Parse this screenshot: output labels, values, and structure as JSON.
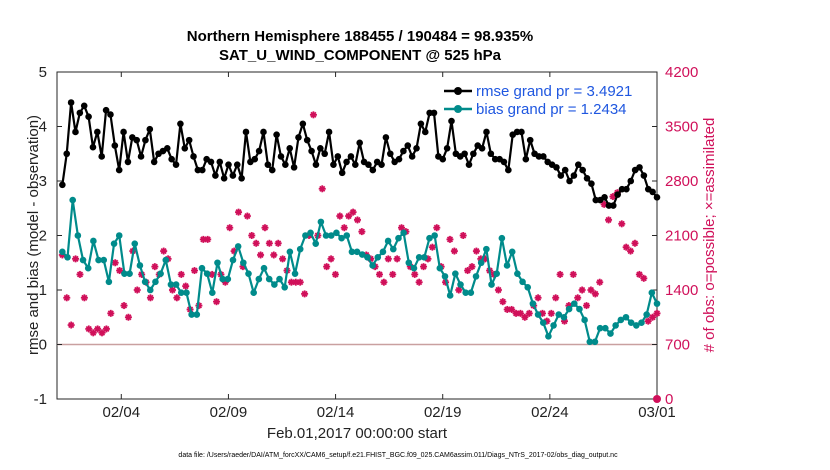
{
  "chart_data": {
    "type": "line",
    "title": "Northern Hemisphere 188455 / 190484 = 98.935%",
    "subtitle": "SAT_U_WIND_COMPONENT @ 525 hPa",
    "xlabel": "Feb.01,2017 00:00:00 start",
    "ylabel": "rmse and bias (model - observation)",
    "ylabel_right": "# of obs: o=possible; ×=assimilated",
    "ylim": [
      -1,
      5
    ],
    "ylim_right": [
      0,
      4200
    ],
    "xlim": [
      0,
      28
    ],
    "yticks": [
      "-1",
      "0",
      "1",
      "2",
      "3",
      "4",
      "5"
    ],
    "yticks_right": [
      "0",
      "700",
      "1400",
      "2100",
      "2800",
      "3500",
      "4200"
    ],
    "xticks": [
      {
        "x": 3,
        "label": "02/04"
      },
      {
        "x": 8,
        "label": "02/09"
      },
      {
        "x": 13,
        "label": "02/14"
      },
      {
        "x": 18,
        "label": "02/19"
      },
      {
        "x": 23,
        "label": "02/24"
      },
      {
        "x": 28,
        "label": "03/01"
      }
    ],
    "legend": {
      "placement": "top-right"
    },
    "x_step": 0.25,
    "series": [
      {
        "name": "rmse",
        "legend_label": "rmse grand pr = 3.4921",
        "color": "#000000",
        "axis": "left",
        "values": [
          2.93,
          3.5,
          4.44,
          3.9,
          4.25,
          4.38,
          4.18,
          3.62,
          3.9,
          3.45,
          4.3,
          4.22,
          3.65,
          3.2,
          3.9,
          3.35,
          3.8,
          3.75,
          3.45,
          3.75,
          3.95,
          3.35,
          3.5,
          3.55,
          3.6,
          3.4,
          3.3,
          4.05,
          3.6,
          3.75,
          3.45,
          3.2,
          3.2,
          3.4,
          3.35,
          3.1,
          3.35,
          3.05,
          3.3,
          3.1,
          3.3,
          3.05,
          3.9,
          3.35,
          3.4,
          3.55,
          3.9,
          3.3,
          3.2,
          3.85,
          3.45,
          3.3,
          3.6,
          3.25,
          3.8,
          4.05,
          3.75,
          3.55,
          3.3,
          3.6,
          3.5,
          3.9,
          3.3,
          3.45,
          3.15,
          3.35,
          3.45,
          3.3,
          3.7,
          3.35,
          3.3,
          3.2,
          3.35,
          3.3,
          3.8,
          3.5,
          3.35,
          3.4,
          3.55,
          3.65,
          3.45,
          3.6,
          4.05,
          3.9,
          4.25,
          4.25,
          3.45,
          3.4,
          3.6,
          4.1,
          3.5,
          3.45,
          3.5,
          3.3,
          3.5,
          3.65,
          3.6,
          3.9,
          3.5,
          3.4,
          3.4,
          3.35,
          3.2,
          3.85,
          3.9,
          3.9,
          3.4,
          3.75,
          3.5,
          3.45,
          3.45,
          3.35,
          3.3,
          3.25,
          3.1,
          3.2,
          3.0,
          3.1,
          3.3,
          3.2,
          3.05,
          2.95,
          2.65,
          2.65,
          2.7,
          2.55,
          2.55,
          2.75,
          2.85,
          2.85,
          3.0,
          3.2,
          3.25,
          3.1,
          2.85,
          2.8,
          2.7
        ]
      },
      {
        "name": "bias",
        "legend_label": "bias grand pr = 1.2434",
        "color": "#008b8b",
        "axis": "left",
        "values": [
          1.7,
          1.6,
          2.65,
          2.0,
          1.55,
          1.4,
          1.9,
          1.55,
          1.55,
          1.15,
          1.85,
          2.0,
          1.3,
          1.3,
          1.85,
          1.45,
          1.15,
          1.0,
          1.15,
          1.3,
          1.55,
          1.1,
          1.1,
          0.95,
          0.95,
          0.55,
          0.55,
          1.4,
          1.3,
          0.95,
          1.5,
          1.2,
          1.2,
          1.55,
          1.8,
          1.5,
          1.3,
          0.95,
          1.2,
          1.4,
          1.2,
          1.1,
          1.2,
          1.05,
          1.7,
          1.3,
          1.75,
          2.0,
          2.05,
          1.85,
          2.25,
          2.0,
          2.0,
          2.05,
          1.95,
          2.0,
          1.7,
          1.7,
          1.65,
          1.6,
          1.45,
          1.6,
          1.7,
          1.9,
          1.75,
          1.95,
          2.05,
          1.5,
          1.4,
          1.6,
          1.6,
          1.95,
          2.0,
          1.4,
          1.25,
          0.9,
          1.3,
          1.1,
          0.95,
          0.95,
          1.25,
          1.5,
          1.75,
          1.1,
          1.3,
          1.95,
          1.45,
          1.7,
          1.3,
          1.15,
          1.05,
          0.75,
          0.55,
          0.4,
          0.15,
          0.35,
          0.55,
          0.5,
          0.65,
          0.75,
          0.65,
          0.45,
          0.05,
          0.05,
          0.3,
          0.3,
          0.2,
          0.35,
          0.45,
          0.5,
          0.4,
          0.35,
          0.4,
          0.55,
          0.95,
          0.75
        ]
      },
      {
        "name": "obs assimilated",
        "legend_label": "",
        "color": "#d0105a",
        "axis": "right",
        "values": [
          1850,
          1300,
          950,
          1800,
          1600,
          1300,
          900,
          850,
          900,
          850,
          900,
          1100,
          1750,
          1650,
          1200,
          1050,
          1900,
          1400,
          1600,
          1500,
          1300,
          1700,
          1600,
          1900,
          1800,
          1400,
          1300,
          1600,
          1450,
          1150,
          1650,
          1200,
          2050,
          2050,
          1600,
          1250,
          1600,
          1500,
          2200,
          1900,
          2400,
          1700,
          2350,
          2100,
          2000,
          1850,
          2200,
          2000,
          1850,
          2000,
          1800,
          1650,
          1500,
          1500,
          1500,
          1350,
          2100,
          3650,
          2100,
          2700,
          1700,
          1800,
          1600,
          2350,
          2200,
          2350,
          2400,
          2300,
          2150,
          1850,
          1800,
          1700,
          1600,
          1500,
          1800,
          1600,
          1800,
          2200,
          2150,
          1700,
          1600,
          1500,
          1700,
          1800,
          1950,
          2200,
          1700,
          1500,
          2050,
          1900,
          1400,
          2100,
          1650,
          1700,
          1900,
          1800,
          1800,
          1650,
          1600,
          1400,
          1250,
          1150,
          1150,
          1100,
          1100,
          1050,
          1100,
          1200,
          1300,
          1100,
          1000,
          1100,
          1300,
          1600,
          1000,
          1200,
          1600,
          1300,
          1400,
          1200,
          1400,
          1350,
          1500,
          2500,
          2300,
          2600,
          2650,
          2250,
          1950,
          1900,
          2000,
          1600,
          1550,
          1000,
          1050,
          1100
        ]
      }
    ]
  },
  "footer": "data file: /Users/raeder/DAI/ATM_forcXX/CAM6_setup/f.e21.FHIST_BGC.f09_025.CAM6assim.011/Diags_NTrS_2017-02/obs_diag_output.nc"
}
